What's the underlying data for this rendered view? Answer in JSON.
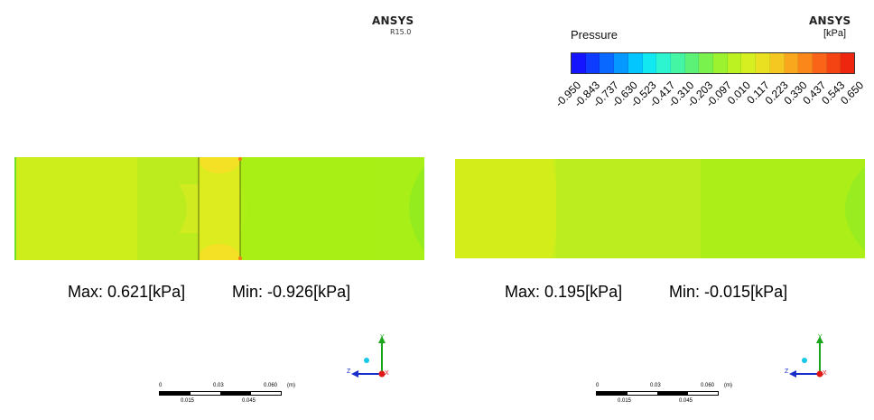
{
  "branding": {
    "left_logo": "ANSYS",
    "left_version": "R15.0",
    "right_logo": "ANSYS"
  },
  "legend": {
    "title": "Pressure",
    "unit": "[kPa]",
    "ticks": [
      "-0.950",
      "-0.843",
      "-0.737",
      "-0.630",
      "-0.523",
      "-0.417",
      "-0.310",
      "-0.203",
      "-0.097",
      "0.010",
      "0.117",
      "0.223",
      "0.330",
      "0.437",
      "0.543",
      "0.650"
    ],
    "colors": [
      "#1515ff",
      "#0d3cff",
      "#0868ff",
      "#0598ff",
      "#03c6ff",
      "#12e8f0",
      "#2cf5d0",
      "#44f5a4",
      "#5cf278",
      "#7af24e",
      "#9cf22e",
      "#bdf222",
      "#d6ef20",
      "#eae022",
      "#f4c820",
      "#f9a81d",
      "#fb861a",
      "#f96418",
      "#f54414",
      "#ee2610"
    ]
  },
  "plots": {
    "left": {
      "max_label": "Max:",
      "max_value": "0.621[kPa]",
      "min_label": "Min:",
      "min_value": "-0.926[kPa]"
    },
    "right": {
      "max_label": "Max:",
      "max_value": "0.195[kPa]",
      "min_label": "Min:",
      "min_value": "-0.015[kPa]"
    }
  },
  "scale_bar": {
    "top_labels": [
      "0",
      "0.03",
      "0.060"
    ],
    "unit": "(m)",
    "bottom_labels": [
      "0.015",
      "0.045"
    ]
  },
  "triad": {
    "y": "Y",
    "z": "Z",
    "x": "X"
  }
}
